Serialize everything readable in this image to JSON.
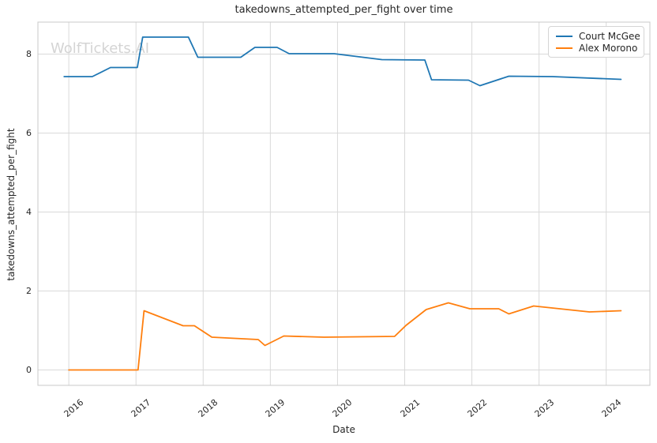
{
  "watermark": "WolfTickets.AI",
  "chart_data": {
    "type": "line",
    "title": "takedowns_attempted_per_fight over time",
    "xlabel": "Date",
    "ylabel": "takedowns_attempted_per_fight",
    "xlim": [
      2015.54,
      2024.65
    ],
    "ylim": [
      -0.39,
      8.81
    ],
    "xticks": [
      2016,
      2017,
      2018,
      2019,
      2020,
      2021,
      2022,
      2023,
      2024
    ],
    "yticks": [
      0,
      2,
      4,
      6,
      8
    ],
    "grid": true,
    "legend_position": "upper right",
    "colors": {
      "grid": "#d9d9d9",
      "spine": "#c8c8c8",
      "text": "#262626",
      "watermark": "#d4d4d4"
    },
    "series": [
      {
        "name": "Court McGee",
        "color": "#1f77b4",
        "points": [
          [
            2015.93,
            7.43
          ],
          [
            2016.35,
            7.43
          ],
          [
            2016.62,
            7.66
          ],
          [
            2017.02,
            7.66
          ],
          [
            2017.1,
            8.43
          ],
          [
            2017.78,
            8.43
          ],
          [
            2017.92,
            7.92
          ],
          [
            2018.56,
            7.92
          ],
          [
            2018.77,
            8.17
          ],
          [
            2019.1,
            8.17
          ],
          [
            2019.28,
            8.01
          ],
          [
            2019.95,
            8.01
          ],
          [
            2020.66,
            7.86
          ],
          [
            2021.3,
            7.85
          ],
          [
            2021.4,
            7.35
          ],
          [
            2021.95,
            7.34
          ],
          [
            2022.12,
            7.2
          ],
          [
            2022.55,
            7.44
          ],
          [
            2023.2,
            7.43
          ],
          [
            2024.22,
            7.36
          ]
        ]
      },
      {
        "name": "Alex Morono",
        "color": "#ff7f0e",
        "points": [
          [
            2016.0,
            0.0
          ],
          [
            2017.03,
            0.0
          ],
          [
            2017.12,
            1.5
          ],
          [
            2017.7,
            1.12
          ],
          [
            2017.87,
            1.12
          ],
          [
            2018.13,
            0.83
          ],
          [
            2018.82,
            0.77
          ],
          [
            2018.92,
            0.62
          ],
          [
            2019.2,
            0.86
          ],
          [
            2019.8,
            0.83
          ],
          [
            2020.85,
            0.85
          ],
          [
            2021.02,
            1.13
          ],
          [
            2021.32,
            1.53
          ],
          [
            2021.65,
            1.7
          ],
          [
            2021.97,
            1.55
          ],
          [
            2022.4,
            1.55
          ],
          [
            2022.55,
            1.42
          ],
          [
            2022.92,
            1.62
          ],
          [
            2023.75,
            1.47
          ],
          [
            2024.22,
            1.5
          ]
        ]
      }
    ]
  }
}
